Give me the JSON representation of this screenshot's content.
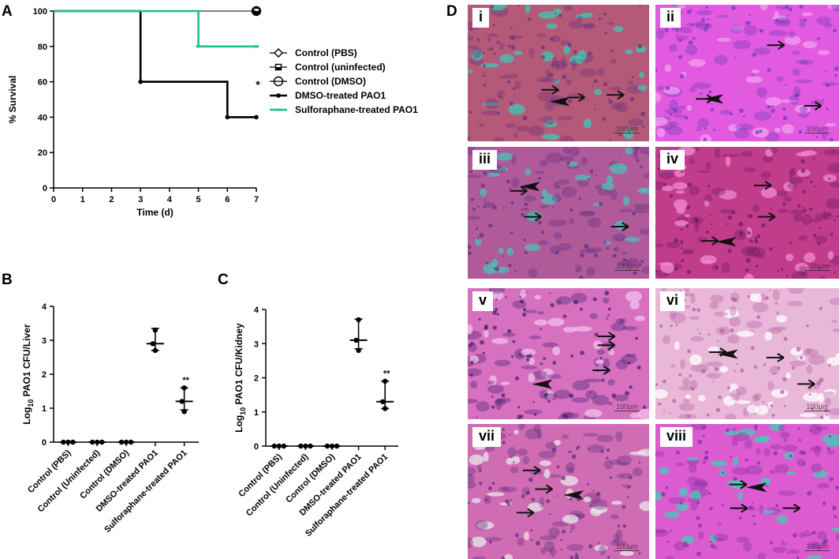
{
  "panel_letters": {
    "a": "A",
    "b": "B",
    "c": "C",
    "d": "D"
  },
  "chart_data": [
    {
      "id": "A",
      "type": "line",
      "step": true,
      "xlabel": "Time (d)",
      "ylabel": "% Survival",
      "xlim": [
        0,
        7
      ],
      "ylim": [
        0,
        100
      ],
      "xticks": [
        0,
        1,
        2,
        3,
        4,
        5,
        6,
        7
      ],
      "yticks": [
        0,
        20,
        40,
        60,
        80,
        100
      ],
      "annotation": "*",
      "series": [
        {
          "name": "Control (PBS)",
          "color": "#000000",
          "marker": "diamond",
          "points": [
            [
              0,
              100
            ],
            [
              7,
              100
            ]
          ]
        },
        {
          "name": "Control (uninfected)",
          "color": "#000000",
          "marker": "square-half",
          "points": [
            [
              0,
              100
            ],
            [
              7,
              100
            ]
          ]
        },
        {
          "name": "Control (DMSO)",
          "color": "#000000",
          "marker": "circle-open",
          "points": [
            [
              0,
              100
            ],
            [
              7,
              100
            ]
          ]
        },
        {
          "name": "DMSO-treated PAO1",
          "color": "#000000",
          "marker": "dot",
          "points": [
            [
              0,
              100
            ],
            [
              3,
              100
            ],
            [
              3,
              60
            ],
            [
              6,
              60
            ],
            [
              6,
              40
            ],
            [
              7,
              40
            ]
          ]
        },
        {
          "name": "Sulforaphane-treated PAO1",
          "color": "#1fbf8f",
          "marker": "dash",
          "points": [
            [
              0,
              100
            ],
            [
              5,
              100
            ],
            [
              5,
              80
            ],
            [
              7,
              80
            ]
          ]
        }
      ]
    },
    {
      "id": "B",
      "type": "scatter",
      "ylabel_pre": "Log",
      "ylabel_sub": "10",
      "ylabel_post": " PAO1 CFU/Liver",
      "ylim": [
        0,
        4
      ],
      "yticks": [
        0,
        1,
        2,
        3,
        4
      ],
      "categories": [
        "Control (PBS)",
        "Control (Uninfected)",
        "Control (DMSO)",
        "DMSO-treated PAO1",
        "Sulforaphane-treated PAO1"
      ],
      "points": [
        [
          0,
          0,
          0
        ],
        [
          0,
          0,
          0
        ],
        [
          0,
          0,
          0
        ],
        [
          3.3,
          2.9,
          2.7
        ],
        [
          1.6,
          1.2,
          0.9
        ]
      ],
      "center": [
        0,
        0,
        0,
        2.9,
        1.2
      ],
      "err": [
        [
          0,
          0
        ],
        [
          0,
          0
        ],
        [
          0,
          0
        ],
        [
          2.7,
          3.35
        ],
        [
          0.95,
          1.6
        ]
      ],
      "annotation_text": "**",
      "annotation_index": 4,
      "annotation_value": 1.75
    },
    {
      "id": "C",
      "type": "scatter",
      "ylabel_pre": "Log",
      "ylabel_sub": "10",
      "ylabel_post": " PAO1 CFU/Kidney",
      "ylim": [
        0,
        4
      ],
      "yticks": [
        0,
        1,
        2,
        3,
        4
      ],
      "categories": [
        "Control (PBS)",
        "Control (Uninfected)",
        "Control (DMSO)",
        "DMSO-treated PAO1",
        "Sulforaphane-treated PAO1"
      ],
      "points": [
        [
          0,
          0,
          0
        ],
        [
          0,
          0,
          0
        ],
        [
          0,
          0,
          0
        ],
        [
          3.7,
          3.1,
          2.8
        ],
        [
          1.9,
          1.3,
          1.1
        ]
      ],
      "center": [
        0,
        0,
        0,
        3.1,
        1.3
      ],
      "err": [
        [
          0,
          0
        ],
        [
          0,
          0
        ],
        [
          0,
          0
        ],
        [
          2.85,
          3.72
        ],
        [
          1.1,
          1.9
        ]
      ],
      "annotation_text": "**",
      "annotation_index": 4,
      "annotation_value": 2.05
    }
  ],
  "micrographs": [
    {
      "label": "i",
      "scale": "100µm",
      "bg": "#b45a78",
      "fleck": "#3fc7b4",
      "stain": "#6a2f7a"
    },
    {
      "label": "ii",
      "scale": "100µm",
      "bg": "#e25ae0",
      "fleck": "#f0a0ef",
      "stain": "#6c3ab8"
    },
    {
      "label": "iii",
      "scale": "100µm",
      "bg": "#b05a9a",
      "fleck": "#49c3b6",
      "stain": "#5f2e80"
    },
    {
      "label": "iv",
      "scale": "100µm",
      "bg": "#c23c8c",
      "fleck": "#f08ad0",
      "stain": "#6a1a5e"
    },
    {
      "label": "v",
      "scale": "100µm",
      "bg": "#d870c0",
      "fleck": "#f2c2ea",
      "stain": "#3a1e6a"
    },
    {
      "label": "vi",
      "scale": "100µm",
      "bg": "#e9b8d9",
      "fleck": "#ffffff",
      "stain": "#b25ca0"
    },
    {
      "label": "vii",
      "scale": "100µm",
      "bg": "#d06cb4",
      "fleck": "#e8e8ea",
      "stain": "#5a2c7a"
    },
    {
      "label": "viii",
      "scale": "100µm",
      "bg": "#dd5bd0",
      "fleck": "#44c9b8",
      "stain": "#7a2fa0"
    }
  ]
}
